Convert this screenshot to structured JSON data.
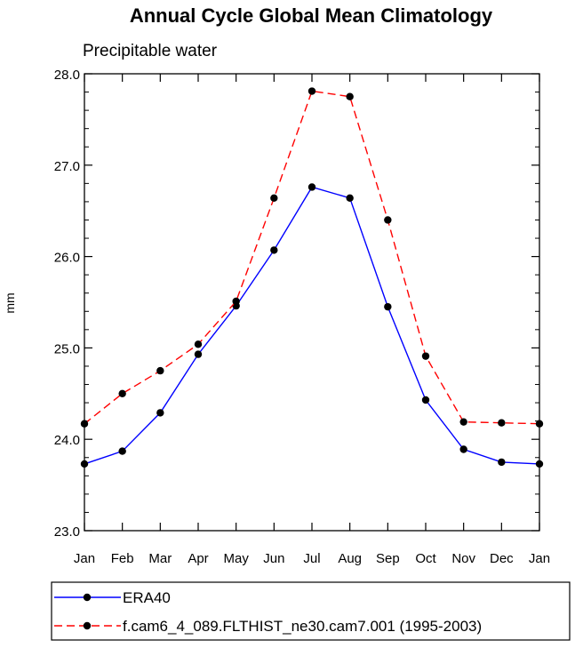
{
  "chart_data": {
    "type": "line",
    "title": "Annual Cycle Global Mean Climatology",
    "subtitle": "Precipitable water",
    "xlabel": "",
    "ylabel": "mm",
    "categories": [
      "Jan",
      "Feb",
      "Mar",
      "Apr",
      "May",
      "Jun",
      "Jul",
      "Aug",
      "Sep",
      "Oct",
      "Nov",
      "Dec",
      "Jan"
    ],
    "ylim": [
      23.0,
      28.0
    ],
    "y_ticks": [
      23.0,
      24.0,
      25.0,
      26.0,
      27.0,
      28.0
    ],
    "y_tick_labels": [
      "23.0",
      "24.0",
      "25.0",
      "26.0",
      "27.0",
      "28.0"
    ],
    "series": [
      {
        "name": "ERA40",
        "color": "#0000ff",
        "dash": "solid",
        "values": [
          23.73,
          23.87,
          24.29,
          24.93,
          25.46,
          26.07,
          26.76,
          26.64,
          25.45,
          24.43,
          23.89,
          23.75,
          23.73
        ]
      },
      {
        "name": "f.cam6_4_089.FLTHIST_ne30.cam7.001 (1995-2003)",
        "color": "#ff0000",
        "dash": "dashed",
        "values": [
          24.17,
          24.5,
          24.75,
          25.04,
          25.51,
          26.64,
          27.81,
          27.75,
          26.4,
          24.91,
          24.19,
          24.18,
          24.17
        ]
      }
    ],
    "legend_position": "bottom-left",
    "marker_color": "#000000",
    "grid": false
  }
}
